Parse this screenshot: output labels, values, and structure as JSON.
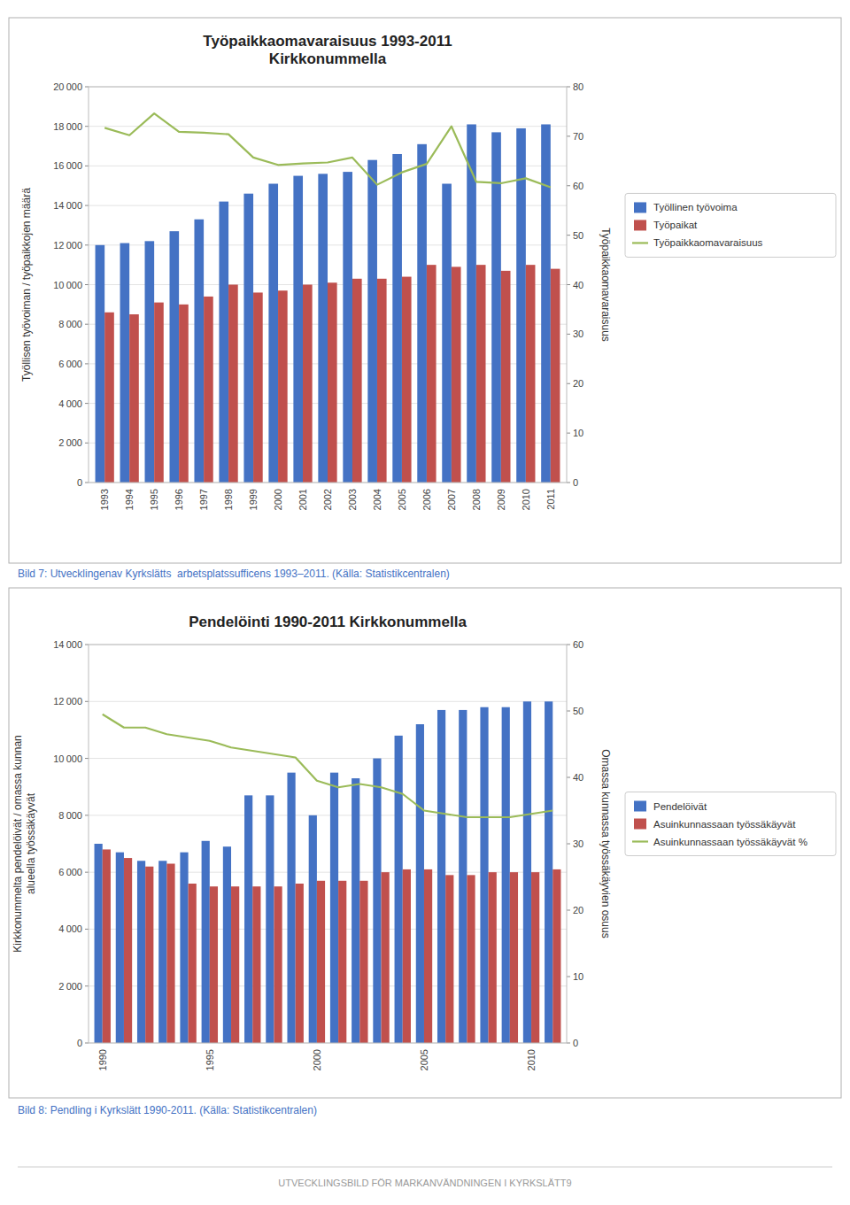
{
  "chart_data": [
    {
      "type": "bar",
      "title": "Työpaikkaomavaraisuus 1993-2011\nKirkkonummella",
      "categories": [
        "1993",
        "1994",
        "1995",
        "1996",
        "1997",
        "1998",
        "1999",
        "2000",
        "2001",
        "2002",
        "2003",
        "2004",
        "2005",
        "2006",
        "2007",
        "2008",
        "2009",
        "2010",
        "2011"
      ],
      "series": [
        {
          "name": "Työllinen työvoima",
          "color": "#4472C4",
          "values": [
            12000,
            12100,
            12200,
            12700,
            13300,
            14200,
            14600,
            15100,
            15500,
            15600,
            15700,
            16300,
            16600,
            17100,
            15100,
            18100,
            17700,
            17900,
            18100
          ]
        },
        {
          "name": "Työpaikat",
          "color": "#C0504D",
          "values": [
            8600,
            8500,
            9100,
            9000,
            9400,
            10000,
            9600,
            9700,
            10000,
            10100,
            10300,
            10300,
            10400,
            11000,
            10900,
            11000,
            10700,
            11000,
            10800
          ]
        },
        {
          "name": "Työpaikkaomavaraisuus",
          "type": "line",
          "axis": "y2",
          "color": "#9BBB59",
          "values": [
            71.7,
            70.2,
            74.6,
            70.9,
            70.7,
            70.4,
            65.7,
            64.2,
            64.5,
            64.7,
            65.7,
            60.2,
            62.7,
            64.4,
            72.0,
            60.8,
            60.5,
            61.5,
            59.7
          ]
        }
      ],
      "y_label": "Työllisen työvoiman / työpaikkojen määrä",
      "y2_label": "Työpaikkaomavaraisuus",
      "ylim": [
        0,
        20000
      ],
      "yticks": [
        0,
        {
          "value": 2000,
          "label": "2 000"
        },
        {
          "value": 4000,
          "label": "4 000"
        },
        {
          "value": 6000,
          "label": "6 000"
        },
        {
          "value": 8000,
          "label": "8 000"
        },
        {
          "value": 10000,
          "label": "10 000"
        },
        {
          "value": 12000,
          "label": "12 000"
        },
        {
          "value": 14000,
          "label": "14 000"
        },
        {
          "value": 16000,
          "label": "16 000"
        },
        {
          "value": 18000,
          "label": "18 000"
        },
        {
          "value": 20000,
          "label": "20 000"
        }
      ],
      "y2lim": [
        0,
        80
      ],
      "y2ticks": [
        0,
        10,
        20,
        30,
        40,
        50,
        60,
        70,
        80
      ],
      "grid": true,
      "legend": "right",
      "caption": "Bild 7: Utvecklingenav Kyrkslätts  arbetsplatssufficens 1993–2011. (Källa: Statistikcentralen)"
    },
    {
      "type": "bar",
      "title": "Pendelöinti 1990-2011 Kirkkonummella",
      "categories": [
        "1990",
        null,
        null,
        null,
        null,
        "1995",
        null,
        null,
        null,
        null,
        "2000",
        null,
        null,
        null,
        null,
        "2005",
        null,
        null,
        null,
        null,
        "2010",
        null
      ],
      "series": [
        {
          "name": "Pendelöivät",
          "color": "#4472C4",
          "values": [
            7000,
            6700,
            6400,
            6400,
            6700,
            7100,
            6900,
            8700,
            8700,
            9500,
            8000,
            9500,
            9300,
            10000,
            10800,
            11200,
            11700,
            11700,
            11800,
            11800,
            12000,
            12000
          ]
        },
        {
          "name": "Asuinkunnassaan työssäkäyvät",
          "color": "#C0504D",
          "values": [
            6800,
            6500,
            6200,
            6300,
            5600,
            5500,
            5500,
            5500,
            5500,
            5600,
            5700,
            5700,
            5700,
            6000,
            6100,
            6100,
            5900,
            5900,
            6000,
            6000,
            6000,
            6100
          ]
        },
        {
          "name": "Asuinkunnassaan työssäkäyvät %",
          "type": "line",
          "axis": "y2",
          "color": "#9BBB59",
          "values": [
            49.5,
            47.5,
            47.5,
            46.5,
            46.0,
            45.5,
            44.5,
            44.0,
            43.5,
            43.0,
            39.5,
            38.5,
            39.0,
            38.5,
            37.5,
            35.0,
            34.5,
            34.0,
            34.0,
            34.0,
            34.5,
            35.0
          ]
        }
      ],
      "y_label": "Kirkkonummelta pendelöivät / omassa kunnan\nalueella työssäkäyvät",
      "y2_label": "Omassa kunnassa työssäkäyvien osuus",
      "ylim": [
        0,
        14000
      ],
      "yticks": [
        0,
        {
          "value": 2000,
          "label": "2 000"
        },
        {
          "value": 4000,
          "label": "4 000"
        },
        {
          "value": 6000,
          "label": "6 000"
        },
        {
          "value": 8000,
          "label": "8 000"
        },
        {
          "value": 10000,
          "label": "10 000"
        },
        {
          "value": 12000,
          "label": "12 000"
        },
        {
          "value": 14000,
          "label": "14 000"
        }
      ],
      "y2lim": [
        0,
        60
      ],
      "y2ticks": [
        0,
        10,
        20,
        30,
        40,
        50,
        60
      ],
      "grid": true,
      "legend": "right",
      "caption": "Bild 8: Pendling i Kyrkslätt 1990-2011. (Källa: Statistikcentralen)"
    }
  ],
  "footer": "UTVECKLINGSBILD FÖR MARKANVÄNDNINGEN I KYRKSLÄTT9"
}
